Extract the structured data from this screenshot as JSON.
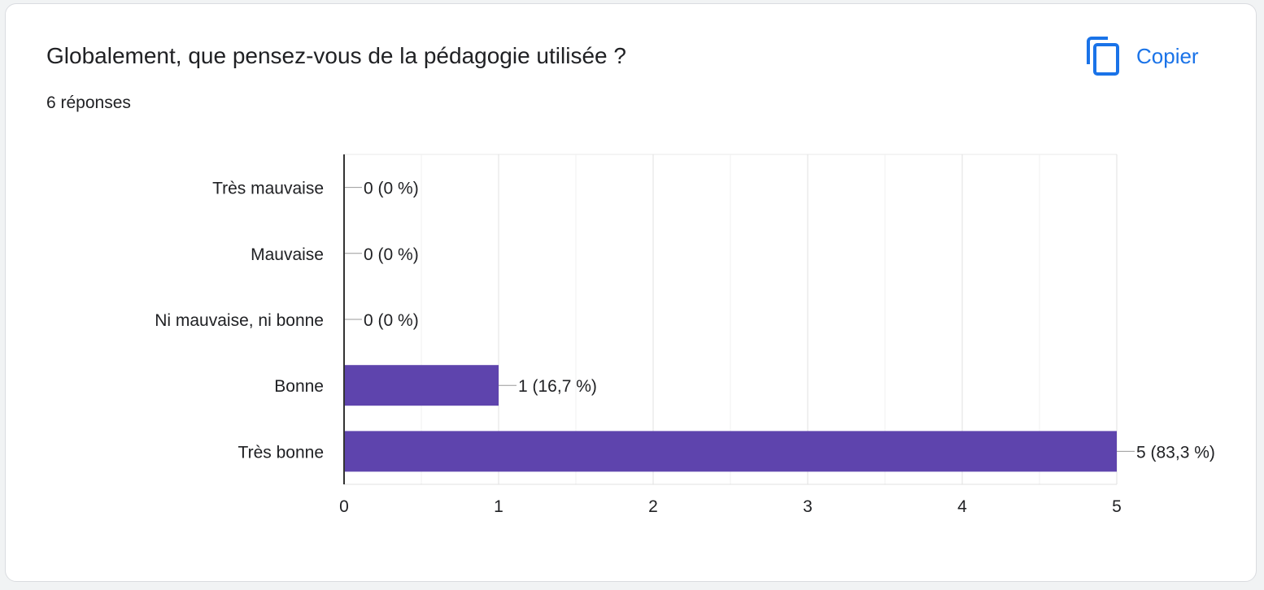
{
  "card": {
    "title": "Globalement, que pensez-vous de la pédagogie utilisée ?",
    "responses": "6 réponses",
    "copy_label": "Copier",
    "copy_icon": "copy-icon"
  },
  "colors": {
    "bar": "#5e44ad",
    "accent": "#1a73e8",
    "grid": "#e8e8e8",
    "axis": "#333333"
  },
  "chart_data": {
    "type": "bar",
    "orientation": "horizontal",
    "categories": [
      "Très mauvaise",
      "Mauvaise",
      "Ni mauvaise, ni bonne",
      "Bonne",
      "Très bonne"
    ],
    "values": [
      0,
      0,
      0,
      1,
      5
    ],
    "data_labels": [
      "0 (0 %)",
      "0 (0 %)",
      "0 (0 %)",
      "1 (16,7 %)",
      "5 (83,3 %)"
    ],
    "xlim": [
      0,
      5
    ],
    "xticks": [
      "0",
      "1",
      "2",
      "3",
      "4",
      "5"
    ],
    "grid": true
  }
}
